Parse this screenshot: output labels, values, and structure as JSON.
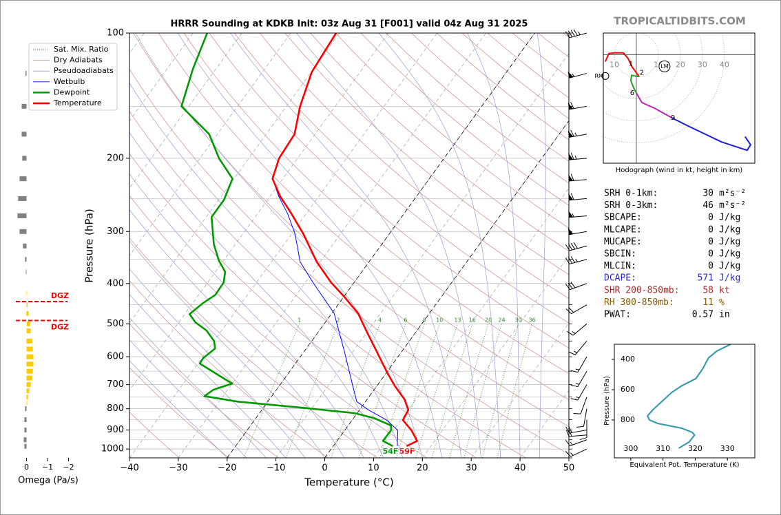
{
  "watermark": "TROPICALTIDBITS.COM",
  "parameters": [
    {
      "label": "SRH 0-1km:",
      "value": 30,
      "unit": "m²s⁻²",
      "color": "#000000"
    },
    {
      "label": "SRH 0-3km:",
      "value": 46,
      "unit": "m²s⁻²",
      "color": "#000000"
    },
    {
      "label": "SBCAPE:",
      "value": 0,
      "unit": "J/kg",
      "color": "#000000"
    },
    {
      "label": "MLCAPE:",
      "value": 0,
      "unit": "J/kg",
      "color": "#000000"
    },
    {
      "label": "MUCAPE:",
      "value": 0,
      "unit": "J/kg",
      "color": "#000000"
    },
    {
      "label": "SBCIN:",
      "value": 0,
      "unit": "J/kg",
      "color": "#000000"
    },
    {
      "label": "MLCIN:",
      "value": 0,
      "unit": "J/kg",
      "color": "#000000"
    },
    {
      "label": "DCAPE:",
      "value": 571,
      "unit": "J/kg",
      "color": "#2a2acc"
    },
    {
      "label": "SHR 200-850mb:",
      "value": 58,
      "unit": "kt",
      "color": "#a52a2a"
    },
    {
      "label": "RH 300-850mb:",
      "value": 11,
      "unit": "%",
      "color": "#8b5a00"
    },
    {
      "label": "PWAT:",
      "value": 0.57,
      "unit": "in",
      "color": "#000000"
    }
  ],
  "chart_data": [
    {
      "type": "skewt",
      "title": "HRRR Sounding at KDKB Init: 03z Aug 31 [F001] valid 04z Aug 31 2025",
      "xlabel": "Temperature (°C)",
      "ylabel": "Pressure (hPa)",
      "xlim": [
        -40,
        50
      ],
      "ylim": [
        1050,
        100
      ],
      "log_y": true,
      "xticks": [
        {
          "value": -40,
          "label": "−40"
        },
        {
          "value": -30,
          "label": "−30"
        },
        {
          "value": -20,
          "label": "−20"
        },
        {
          "value": -10,
          "label": "−10"
        },
        0,
        10,
        20,
        30,
        40,
        50
      ],
      "yticks": [
        100,
        200,
        300,
        400,
        500,
        600,
        700,
        800,
        900,
        1000
      ],
      "minor_yticks": [
        150,
        250,
        350,
        450,
        550,
        650,
        750,
        850,
        950,
        1050
      ],
      "highlight_isotherms": [
        -20,
        0
      ],
      "mixing_ratio_labels": [
        1,
        2,
        4,
        6,
        8,
        10,
        13,
        16,
        20,
        24,
        30,
        36
      ],
      "reference_lines": [
        {
          "name": "Sat. Mix. Ratio",
          "color": "#2e8b2e"
        },
        {
          "name": "Dry Adiabats",
          "color": "#d08a8a"
        },
        {
          "name": "Pseudoadiabats",
          "color": "#9a9ad6"
        }
      ],
      "series": [
        {
          "name": "Wetbulb",
          "color": "#0000ff",
          "pressure": [
            984,
            902,
            852,
            805,
            769,
            704,
            582,
            472,
            398,
            355,
            304,
            272,
            247,
            224,
            200,
            175,
            150,
            124,
            100
          ],
          "values": [
            13.1,
            10.9,
            7.1,
            1.8,
            -1.8,
            -5.0,
            -11.8,
            -19.5,
            -28.4,
            -34.1,
            -39.3,
            -43.8,
            -48.2,
            -52.1,
            -53.8,
            -54.2,
            -57.2,
            -59.9,
            -60.7
          ]
        },
        {
          "name": "Dewpoint",
          "color": "#009a00",
          "pressure": [
            984,
            956,
            902,
            878,
            842,
            820,
            796,
            769,
            746,
            720,
            696,
            623,
            605,
            573,
            550,
            519,
            496,
            474,
            446,
            426,
            398,
            375,
            352,
            322,
            277,
            252,
            224,
            200,
            175,
            150,
            122,
            100
          ],
          "values": [
            12.2,
            9.4,
            9.5,
            8.8,
            4.1,
            -0.5,
            -11.9,
            -26.2,
            -33.8,
            -32.9,
            -30.0,
            -39.6,
            -39.7,
            -38.7,
            -40.0,
            -43.1,
            -46.6,
            -49.0,
            -47.9,
            -46.6,
            -46.7,
            -48.0,
            -51.0,
            -54.4,
            -58.9,
            -58.9,
            -60.3,
            -66.1,
            -71.7,
            -81.5,
            -84.7,
            -87.1
          ]
        },
        {
          "name": "Temperature",
          "color": "#ff0000",
          "pressure": [
            984,
            956,
            902,
            852,
            805,
            760,
            704,
            653,
            582,
            519,
            472,
            429,
            398,
            355,
            304,
            272,
            247,
            224,
            200,
            175,
            150,
            124,
            100
          ],
          "values": [
            15.0,
            16.4,
            13.7,
            10.4,
            10.0,
            7.7,
            3.6,
            0.0,
            -5.2,
            -10.4,
            -14.6,
            -20.1,
            -24.7,
            -30.7,
            -37.6,
            -43.0,
            -47.9,
            -52.1,
            -53.8,
            -54.2,
            -57.2,
            -59.9,
            -60.7
          ]
        }
      ],
      "surface_labels": {
        "dewpoint": "54F",
        "temperature": "59F"
      },
      "winds": [
        {
          "pressure": 100,
          "speed": 45,
          "direction": 255
        },
        {
          "pressure": 125,
          "speed": 55,
          "direction": 255
        },
        {
          "pressure": 150,
          "speed": 60,
          "direction": 260
        },
        {
          "pressure": 175,
          "speed": 65,
          "direction": 260
        },
        {
          "pressure": 200,
          "speed": 65,
          "direction": 265
        },
        {
          "pressure": 225,
          "speed": 60,
          "direction": 265
        },
        {
          "pressure": 250,
          "speed": 60,
          "direction": 265
        },
        {
          "pressure": 275,
          "speed": 55,
          "direction": 265
        },
        {
          "pressure": 300,
          "speed": 50,
          "direction": 260
        },
        {
          "pressure": 325,
          "speed": 40,
          "direction": 255
        },
        {
          "pressure": 350,
          "speed": 35,
          "direction": 255
        },
        {
          "pressure": 400,
          "speed": 30,
          "direction": 250
        },
        {
          "pressure": 450,
          "speed": 20,
          "direction": 240
        },
        {
          "pressure": 500,
          "speed": 15,
          "direction": 230
        },
        {
          "pressure": 550,
          "speed": 15,
          "direction": 220
        },
        {
          "pressure": 600,
          "speed": 15,
          "direction": 210
        },
        {
          "pressure": 650,
          "speed": 15,
          "direction": 210
        },
        {
          "pressure": 700,
          "speed": 15,
          "direction": 210
        },
        {
          "pressure": 750,
          "speed": 10,
          "direction": 200
        },
        {
          "pressure": 800,
          "speed": 10,
          "direction": 190
        },
        {
          "pressure": 850,
          "speed": 10,
          "direction": 180
        },
        {
          "pressure": 900,
          "speed": 20,
          "direction": 260
        },
        {
          "pressure": 925,
          "speed": 20,
          "direction": 265
        },
        {
          "pressure": 950,
          "speed": 15,
          "direction": 250
        },
        {
          "pressure": 1000,
          "speed": 15,
          "direction": 245
        }
      ]
    },
    {
      "type": "bar",
      "orientation": "horizontal",
      "xlabel": "Omega (Pa/s)",
      "xlim": [
        1,
        -2.05
      ],
      "ylim": [
        1050,
        100
      ],
      "xticks": [
        0,
        {
          "value": -1,
          "label": "−1"
        },
        {
          "value": -2,
          "label": "−2"
        }
      ],
      "positive_color": "#808080",
      "negative_color": "#ffcc00",
      "pressure": [
        125,
        150,
        175,
        200,
        224,
        250,
        275,
        300,
        325,
        350,
        375,
        422,
        450,
        472,
        500,
        520,
        550,
        575,
        600,
        625,
        650,
        675,
        700,
        725,
        750,
        775,
        800,
        850,
        900,
        950,
        985
      ],
      "values": [
        0.05,
        0.23,
        0.23,
        0.2,
        0.33,
        0.4,
        0.43,
        0.33,
        0.17,
        0.07,
        0.03,
        -0.02,
        -0.05,
        -0.1,
        -0.17,
        -0.2,
        -0.27,
        -0.3,
        -0.33,
        -0.33,
        -0.3,
        -0.27,
        -0.2,
        -0.13,
        -0.07,
        -0.03,
        0.07,
        0.1,
        0.1,
        0.13,
        0.1
      ],
      "dgz": {
        "pressures": [
          442,
          491
        ],
        "labels": [
          "DGZ",
          "DGZ"
        ],
        "color": "#ff0000"
      }
    },
    {
      "type": "hodograph",
      "caption": "Hodograph (wind in kt, height in km)",
      "ulim": [
        -15,
        53.8
      ],
      "vlim": [
        -49.7,
        10
      ],
      "rings": [
        10,
        20,
        30,
        40
      ],
      "ring_labels_left": [
        10
      ],
      "segments": [
        {
          "color": "#ff0000",
          "u": [
            -14.1,
            -12.5,
            -10,
            -5.9,
            -3.8,
            -1.9,
            1.3
          ],
          "v": [
            -3.1,
            0.6,
            0.9,
            0.9,
            -1.6,
            -5.6,
            -10
          ]
        },
        {
          "color": "#22a022",
          "u": [
            1.3,
            -2.2,
            -2.5,
            -1.3,
            0
          ],
          "v": [
            -10,
            -9.4,
            -11.9,
            -15,
            -17.5
          ]
        },
        {
          "color": "#bb22bb",
          "u": [
            0,
            2.5,
            8.1,
            15.9
          ],
          "v": [
            -17.5,
            -21.9,
            -24.4,
            -28.8
          ]
        },
        {
          "color": "#1a1aee",
          "u": [
            15.9,
            23.8,
            38.8,
            50.3,
            51.9,
            49.4
          ],
          "v": [
            -28.8,
            -32.8,
            -40,
            -43.8,
            -41.3,
            -37.5
          ]
        }
      ],
      "height_labels": [
        {
          "label": 1,
          "u": -2.5,
          "v": -4.1
        },
        {
          "label": 2,
          "u": 2.5,
          "v": -8.1
        },
        {
          "label": 6,
          "u": -1.9,
          "v": -17.5
        },
        {
          "label": 9,
          "u": 16.6,
          "v": -28.8
        }
      ],
      "storm_motions": [
        {
          "label": "RM",
          "u": -14.7,
          "v": -9.7
        },
        {
          "label": "LM",
          "u": 12.8,
          "v": -5.3
        }
      ]
    },
    {
      "type": "line",
      "xlabel": "Equivalent Pot. Temperature (K)",
      "ylabel": "Pressure (hPa)",
      "xlim": [
        294.9,
        338.5
      ],
      "ylim": [
        1050,
        300
      ],
      "xticks": [
        300,
        310,
        320,
        330
      ],
      "yticks": [
        400,
        600,
        800
      ],
      "series": [
        {
          "color": "#3a9ab0",
          "pressure": [
            300,
            345,
            391,
            459,
            527,
            573,
            618,
            673,
            732,
            773,
            800,
            823,
            855,
            882,
            900,
            945,
            986
          ],
          "values": [
            331.0,
            326.7,
            324.1,
            322.4,
            320.2,
            315.9,
            312.7,
            309.9,
            306.9,
            305.2,
            305.8,
            308.4,
            315.9,
            319.1,
            319.8,
            318.1,
            314.9
          ]
        }
      ]
    }
  ]
}
